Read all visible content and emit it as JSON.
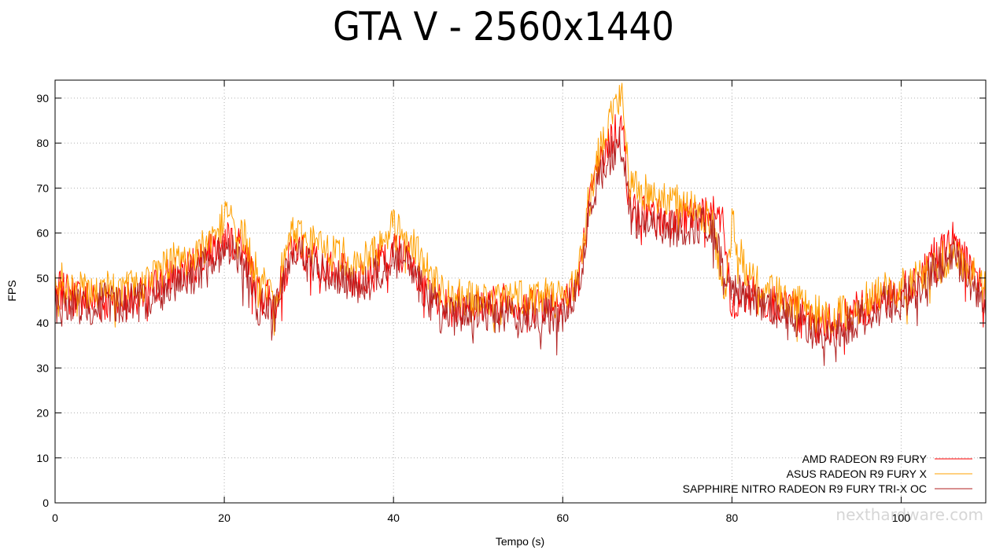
{
  "chart_data": {
    "type": "line",
    "title": "GTA V - 2560x1440",
    "xlabel": "Tempo (s)",
    "ylabel": "FPS",
    "xlim": [
      0,
      110
    ],
    "ylim": [
      0,
      94
    ],
    "xticks": [
      0,
      20,
      40,
      60,
      80,
      100
    ],
    "yticks": [
      0,
      10,
      20,
      30,
      40,
      50,
      60,
      70,
      80,
      90
    ],
    "grid": true,
    "legend_position": "bottom-right",
    "series": [
      {
        "name": "AMD RADEON R9 FURY",
        "color": "#ff0000",
        "x": [
          0,
          2,
          4,
          6,
          8,
          10,
          12,
          14,
          16,
          18,
          20,
          22,
          24,
          26,
          28,
          30,
          32,
          34,
          36,
          38,
          40,
          42,
          44,
          46,
          48,
          50,
          52,
          54,
          56,
          58,
          60,
          61,
          62,
          63,
          64,
          65,
          66,
          67,
          68,
          70,
          72,
          74,
          76,
          78,
          79,
          80,
          82,
          84,
          86,
          88,
          90,
          92,
          94,
          96,
          98,
          100,
          102,
          104,
          106,
          108,
          110
        ],
        "y": [
          48,
          46,
          45,
          45,
          45,
          46,
          48,
          51,
          52,
          56,
          60,
          57,
          47,
          44,
          57,
          55,
          53,
          52,
          50,
          53,
          56,
          54,
          48,
          43,
          44,
          44,
          44,
          45,
          44,
          45,
          45,
          46,
          50,
          64,
          73,
          79,
          82,
          84,
          65,
          64,
          63,
          63,
          65,
          64,
          62,
          42,
          47,
          45,
          44,
          42,
          40,
          40,
          42,
          44,
          46,
          47,
          50,
          55,
          58,
          53,
          47
        ]
      },
      {
        "name": "ASUS RADEON R9 FURY X",
        "color": "#ffa000",
        "x": [
          0,
          2,
          4,
          6,
          8,
          10,
          12,
          14,
          16,
          18,
          20,
          22,
          24,
          26,
          28,
          30,
          32,
          34,
          36,
          38,
          40,
          42,
          44,
          46,
          48,
          50,
          52,
          54,
          56,
          58,
          60,
          61,
          62,
          63,
          64,
          65,
          66,
          67,
          68,
          70,
          72,
          74,
          76,
          78,
          79,
          80,
          82,
          84,
          86,
          88,
          90,
          92,
          94,
          96,
          98,
          100,
          102,
          104,
          106,
          108,
          110
        ],
        "y": [
          50,
          48,
          47,
          48,
          47,
          48,
          51,
          54,
          55,
          58,
          63,
          61,
          50,
          46,
          60,
          58,
          56,
          55,
          53,
          56,
          62,
          58,
          52,
          46,
          46,
          45,
          46,
          46,
          46,
          46,
          45,
          47,
          52,
          66,
          76,
          83,
          88,
          90,
          70,
          69,
          68,
          67,
          66,
          60,
          45,
          62,
          50,
          47,
          46,
          44,
          42,
          41,
          43,
          45,
          47,
          48,
          50,
          53,
          55,
          52,
          47
        ]
      },
      {
        "name": "SAPPHIRE NITRO RADEON R9 FURY TRI-X OC",
        "color": "#b22222",
        "x": [
          0,
          2,
          4,
          6,
          8,
          10,
          12,
          14,
          16,
          18,
          20,
          22,
          24,
          26,
          28,
          30,
          32,
          34,
          36,
          38,
          40,
          42,
          44,
          46,
          48,
          50,
          52,
          54,
          56,
          58,
          60,
          61,
          62,
          63,
          64,
          65,
          66,
          67,
          68,
          70,
          72,
          74,
          76,
          78,
          79,
          80,
          82,
          84,
          86,
          88,
          90,
          92,
          94,
          96,
          98,
          100,
          102,
          104,
          106,
          108,
          110
        ],
        "y": [
          44,
          43,
          44,
          45,
          44,
          45,
          46,
          49,
          50,
          53,
          57,
          54,
          44,
          42,
          56,
          53,
          51,
          50,
          48,
          51,
          55,
          52,
          46,
          41,
          42,
          42,
          42,
          43,
          42,
          42,
          42,
          44,
          48,
          62,
          71,
          75,
          78,
          80,
          64,
          62,
          61,
          61,
          62,
          60,
          50,
          48,
          46,
          44,
          43,
          41,
          38,
          38,
          40,
          42,
          44,
          45,
          48,
          52,
          55,
          50,
          44
        ]
      }
    ]
  },
  "watermark_text": "nexthardware.com"
}
